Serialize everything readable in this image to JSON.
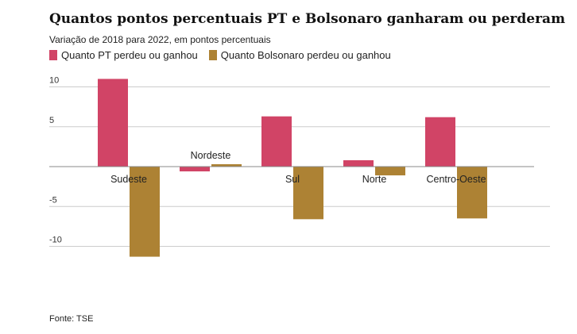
{
  "chart_data": {
    "type": "bar",
    "title": "Quantos pontos percentuais PT e Bolsonaro ganharam ou perderam",
    "subtitle": "Variação de 2018 para 2022, em pontos percentuais",
    "categories": [
      "Sudeste",
      "Nordeste",
      "Sul",
      "Norte",
      "Centro-Oeste"
    ],
    "series": [
      {
        "name": "Quanto PT perdeu ou ganhou",
        "color": "#d14466",
        "values": [
          11.0,
          -0.6,
          6.3,
          0.8,
          6.2
        ]
      },
      {
        "name": "Quanto Bolsonaro perdeu ou ganhou",
        "color": "#ad8234",
        "values": [
          -11.3,
          0.3,
          -6.6,
          -1.1,
          -6.5
        ]
      }
    ],
    "yticks": [
      10,
      5,
      0,
      -5,
      -10
    ],
    "ytick_labels": [
      "10",
      "5",
      "",
      "-5",
      "-10"
    ],
    "ylim": [
      -12,
      12
    ],
    "grid": true,
    "legend": "top-left",
    "source": "Fonte: TSE"
  }
}
